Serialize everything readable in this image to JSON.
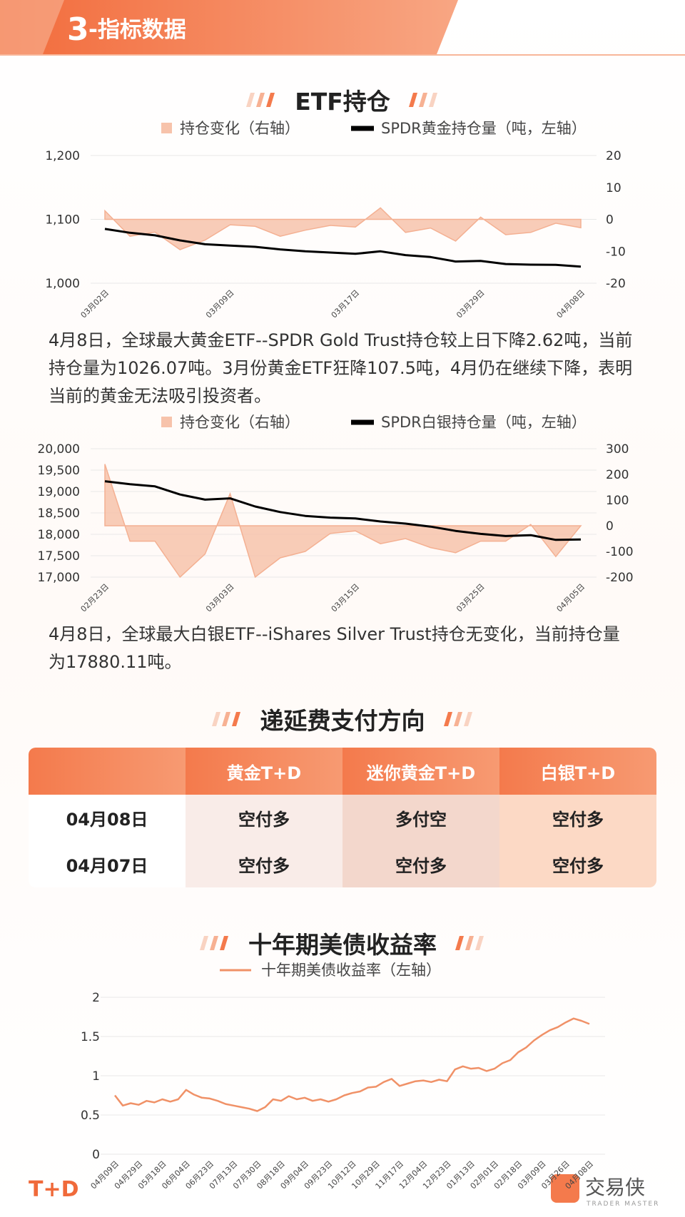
{
  "header": {
    "number": "3",
    "title": "-指标数据"
  },
  "chart_data": [
    {
      "type": "combo",
      "title": "ETF持仓",
      "categories": [
        "03月02日",
        null,
        null,
        null,
        null,
        "03月09日",
        null,
        null,
        null,
        null,
        "03月17日",
        null,
        null,
        null,
        null,
        "03月29日",
        null,
        null,
        null,
        "04月08日"
      ],
      "series": [
        {
          "name": "持仓变化（右轴）",
          "type": "area",
          "axis": "y2",
          "color": "#f7c3ab",
          "values": [
            2.7,
            -5.3,
            -4,
            -9.5,
            -6.5,
            -1.7,
            -2.2,
            -5.3,
            -3.4,
            -1.9,
            -2.4,
            3.6,
            -4.1,
            -2.7,
            -6.8,
            0.7,
            -4.8,
            -4.1,
            -1.2,
            -2.62
          ]
        },
        {
          "name": "SPDR黄金持仓量（吨，左轴）",
          "type": "line",
          "color": "#000000",
          "values": [
            1085,
            1079,
            1075,
            1067,
            1061,
            1059,
            1057,
            1053,
            1050,
            1048,
            1046,
            1050,
            1044,
            1041,
            1034,
            1035,
            1030,
            1029,
            1028.69,
            1026.07
          ]
        }
      ],
      "ylim": [
        1000,
        1200
      ],
      "yticks": [
        {
          "value": 1000,
          "label": "1,000"
        },
        {
          "value": 1100,
          "label": "1,100"
        },
        {
          "value": 1200,
          "label": "1,200"
        }
      ],
      "y2lim": [
        -20,
        20
      ],
      "y2ticks": [
        -20,
        -10,
        0,
        10,
        20
      ],
      "grid": true
    },
    {
      "type": "combo",
      "categories": [
        "02月23日",
        null,
        null,
        null,
        null,
        "03月03日",
        null,
        null,
        null,
        null,
        "03月15日",
        null,
        null,
        null,
        null,
        "03月25日",
        null,
        null,
        null,
        "04月05日"
      ],
      "series": [
        {
          "name": "持仓变化（右轴）",
          "type": "area",
          "axis": "y2",
          "color": "#f7c3ab",
          "values": [
            240,
            -60,
            -60,
            -200,
            -110,
            125,
            -200,
            -125,
            -100,
            -30,
            -20,
            -70,
            -50,
            -85,
            -105,
            -60,
            -60,
            5,
            -120,
            0
          ]
        },
        {
          "name": "SPDR白银持仓量（吨，左轴）",
          "type": "line",
          "color": "#000000",
          "values": [
            19240,
            19170,
            19120,
            18930,
            18810,
            18840,
            18650,
            18520,
            18430,
            18390,
            18370,
            18300,
            18250,
            18180,
            18080,
            18010,
            17960,
            17980,
            17870,
            17880.11
          ]
        }
      ],
      "ylim": [
        17000,
        20000
      ],
      "yticks": [
        {
          "value": 17000,
          "label": "17,000"
        },
        {
          "value": 17500,
          "label": "17,500"
        },
        {
          "value": 18000,
          "label": "18,000"
        },
        {
          "value": 18500,
          "label": "18,500"
        },
        {
          "value": 19000,
          "label": "19,000"
        },
        {
          "value": 19500,
          "label": "19,500"
        },
        {
          "value": 20000,
          "label": "20,000"
        }
      ],
      "y2lim": [
        -200,
        300
      ],
      "y2ticks": [
        -200,
        -100,
        0,
        100,
        200,
        300
      ],
      "grid": true
    },
    {
      "type": "line",
      "title": "十年期美债收益率",
      "categories": [
        "04月09日",
        null,
        null,
        "04月29日",
        null,
        null,
        "05月18日",
        null,
        null,
        "06月04日",
        null,
        null,
        "06月23日",
        null,
        null,
        "07月13日",
        null,
        null,
        "07月30日",
        null,
        null,
        "08月18日",
        null,
        null,
        "09月04日",
        null,
        null,
        "09月23日",
        null,
        null,
        "10月12日",
        null,
        null,
        "10月29日",
        null,
        null,
        "11月17日",
        null,
        null,
        "12月04日",
        null,
        null,
        "12月23日",
        null,
        null,
        "01月13日",
        null,
        null,
        "02月01日",
        null,
        null,
        "02月18日",
        null,
        null,
        "03月09日",
        null,
        null,
        "03月26日",
        null,
        null,
        "04月08日"
      ],
      "series": [
        {
          "name": "十年期美债收益率（左轴）",
          "type": "line",
          "color": "#f09167",
          "values": [
            0.75,
            0.62,
            0.65,
            0.63,
            0.68,
            0.66,
            0.7,
            0.67,
            0.7,
            0.82,
            0.76,
            0.72,
            0.71,
            0.68,
            0.64,
            0.62,
            0.6,
            0.58,
            0.55,
            0.6,
            0.7,
            0.68,
            0.74,
            0.7,
            0.72,
            0.68,
            0.7,
            0.67,
            0.7,
            0.75,
            0.78,
            0.8,
            0.85,
            0.86,
            0.92,
            0.96,
            0.87,
            0.9,
            0.93,
            0.94,
            0.92,
            0.95,
            0.93,
            1.08,
            1.12,
            1.09,
            1.1,
            1.06,
            1.09,
            1.16,
            1.2,
            1.3,
            1.36,
            1.45,
            1.52,
            1.58,
            1.62,
            1.68,
            1.73,
            1.7,
            1.66
          ]
        }
      ],
      "ylim": [
        0,
        2
      ],
      "yticks": [
        0,
        0.5,
        1,
        1.5,
        2
      ],
      "grid": true
    }
  ],
  "paragraphs": [
    "4月8日，全球最大黄金ETF--SPDR Gold Trust持仓较上日下降2.62吨，当前持仓量为1026.07吨。3月份黄金ETF狂降107.5吨，4月仍在继续下降，表明当前的黄金无法吸引投资者。",
    "4月8日，全球最大白银ETF--iShares Silver Trust持仓无变化，当前持仓量为17880.11吨。"
  ],
  "table": {
    "title": "递延费支付方向",
    "header": [
      "黄金T+D",
      "迷你黄金T+D",
      "白银T+D"
    ],
    "rows": [
      [
        "04月08日",
        "空付多",
        "多付空",
        "空付多"
      ],
      [
        "04月07日",
        "空付多",
        "空付多",
        "空付多"
      ]
    ]
  },
  "footer": {
    "logo": "T+D",
    "brand": "交易侠",
    "brand_sub": "TRADER MASTER"
  }
}
